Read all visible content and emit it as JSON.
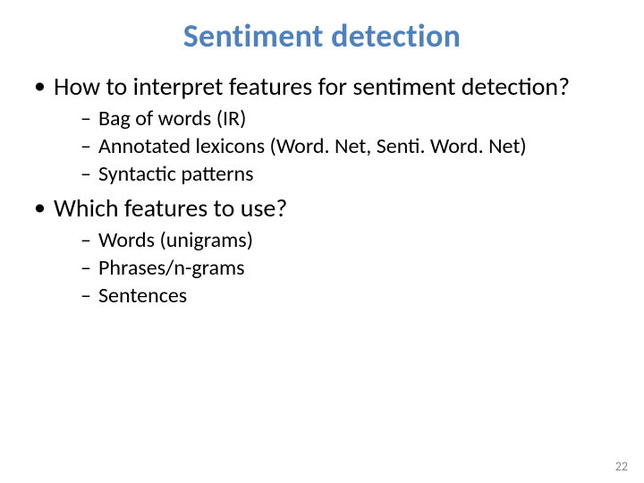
{
  "title": "Sentiment detection",
  "title_color": "#4e81bd",
  "title_fontsize": 36,
  "background_color": "#ffffff",
  "bullets": [
    {
      "text": "How to interpret features for sentiment detection?",
      "sub": [
        "Bag of words (IR)",
        "Annotated lexicons (Word. Net, Senti. Word. Net)",
        "Syntactic patterns"
      ]
    },
    {
      "text": "Which features to use?",
      "sub": [
        "Words (unigrams)",
        "Phrases/n-grams",
        "Sentences"
      ]
    }
  ],
  "bullet_fontsize": 28,
  "sub_fontsize": 24,
  "text_color": "#000000",
  "page_number": "22",
  "page_number_color": "#8a8a8a",
  "page_number_fontsize": 14
}
